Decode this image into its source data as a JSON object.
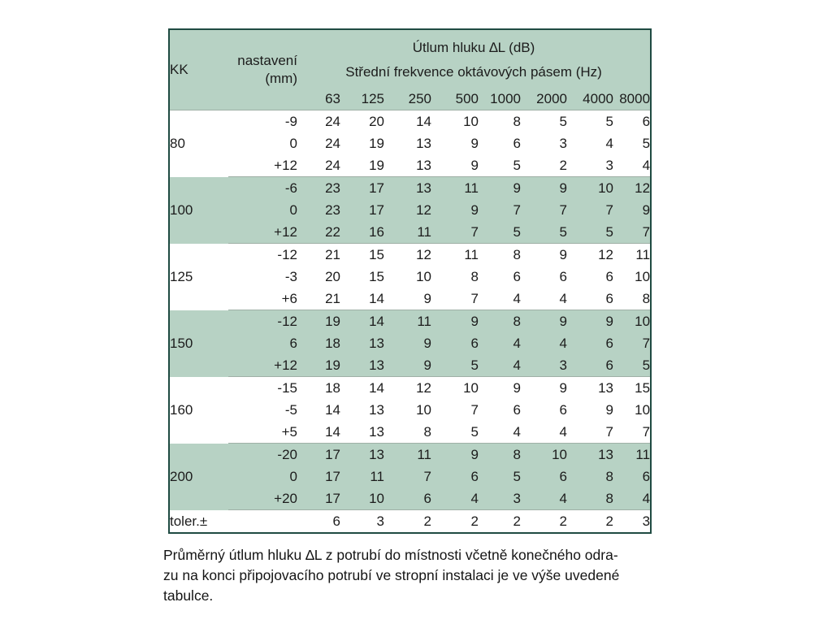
{
  "table": {
    "title": "Útlum hluku ∆L (dB)",
    "subtitle": "Střední frekvence oktávových pásem (Hz)",
    "col1_header": "KK",
    "col2_header_line1": "nastavení",
    "col2_header_line2": "(mm)",
    "frequencies": [
      "63",
      "125",
      "250",
      "500",
      "1000",
      "2000",
      "4000",
      "8000"
    ],
    "groups": [
      {
        "kk": "80",
        "shade": false,
        "rows": [
          {
            "nastaveni": "-9",
            "values": [
              24,
              20,
              14,
              10,
              8,
              5,
              5,
              6
            ]
          },
          {
            "nastaveni": "0",
            "values": [
              24,
              19,
              13,
              9,
              6,
              3,
              4,
              5
            ]
          },
          {
            "nastaveni": "+12",
            "values": [
              24,
              19,
              13,
              9,
              5,
              2,
              3,
              4
            ]
          }
        ]
      },
      {
        "kk": "100",
        "shade": true,
        "rows": [
          {
            "nastaveni": "-6",
            "values": [
              23,
              17,
              13,
              11,
              9,
              9,
              10,
              12
            ]
          },
          {
            "nastaveni": "0",
            "values": [
              23,
              17,
              12,
              9,
              7,
              7,
              7,
              9
            ]
          },
          {
            "nastaveni": "+12",
            "values": [
              22,
              16,
              11,
              7,
              5,
              5,
              5,
              7
            ]
          }
        ]
      },
      {
        "kk": "125",
        "shade": false,
        "rows": [
          {
            "nastaveni": "-12",
            "values": [
              21,
              15,
              12,
              11,
              8,
              9,
              12,
              11
            ]
          },
          {
            "nastaveni": "-3",
            "values": [
              20,
              15,
              10,
              8,
              6,
              6,
              6,
              10
            ]
          },
          {
            "nastaveni": "+6",
            "values": [
              21,
              14,
              9,
              7,
              4,
              4,
              6,
              8
            ]
          }
        ]
      },
      {
        "kk": "150",
        "shade": true,
        "rows": [
          {
            "nastaveni": "-12",
            "values": [
              19,
              14,
              11,
              9,
              8,
              9,
              9,
              10
            ]
          },
          {
            "nastaveni": "6",
            "values": [
              18,
              13,
              9,
              6,
              4,
              4,
              6,
              7
            ]
          },
          {
            "nastaveni": "+12",
            "values": [
              19,
              13,
              9,
              5,
              4,
              3,
              6,
              5
            ]
          }
        ]
      },
      {
        "kk": "160",
        "shade": false,
        "rows": [
          {
            "nastaveni": "-15",
            "values": [
              18,
              14,
              12,
              10,
              9,
              9,
              13,
              15
            ]
          },
          {
            "nastaveni": "-5",
            "values": [
              14,
              13,
              10,
              7,
              6,
              6,
              9,
              10
            ]
          },
          {
            "nastaveni": "+5",
            "values": [
              14,
              13,
              8,
              5,
              4,
              4,
              7,
              7
            ]
          }
        ]
      },
      {
        "kk": "200",
        "shade": true,
        "rows": [
          {
            "nastaveni": "-20",
            "values": [
              17,
              13,
              11,
              9,
              8,
              10,
              13,
              11
            ]
          },
          {
            "nastaveni": "0",
            "values": [
              17,
              11,
              7,
              6,
              5,
              6,
              8,
              6
            ]
          },
          {
            "nastaveni": "+20",
            "values": [
              17,
              10,
              6,
              4,
              3,
              4,
              8,
              4
            ]
          }
        ]
      }
    ],
    "tolerance_row": {
      "label": "toler.±",
      "values": [
        6,
        3,
        2,
        2,
        2,
        2,
        2,
        3
      ]
    }
  },
  "caption": {
    "lines": [
      "Průměrný útlum hluku ∆L z potrubí do místnosti včetně konečného odra-",
      "zu na konci připojovacího potrubí ve stropní instalaci je ve výše uvedené",
      "tabulce."
    ]
  },
  "colors": {
    "shade_green": "#b7d2c4",
    "border_dark": "#1f4b42"
  }
}
